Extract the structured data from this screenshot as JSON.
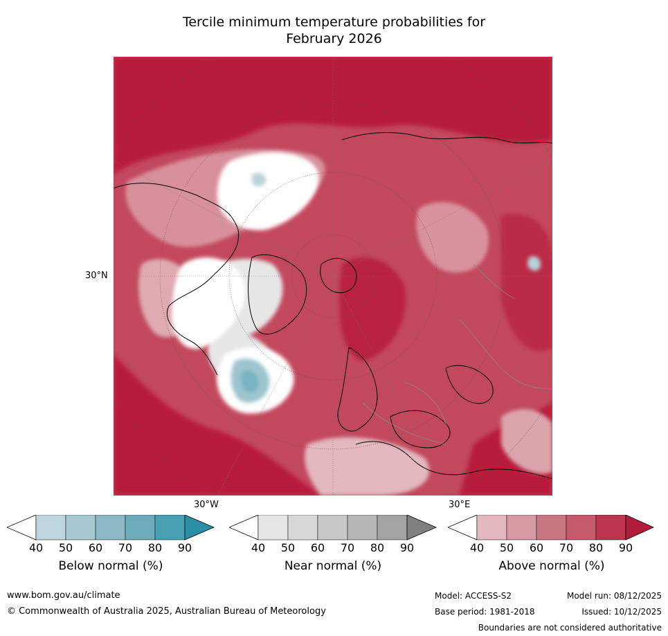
{
  "title_line1": "Tercile minimum temperature probabilities for",
  "title_line2": "February 2026",
  "map": {
    "labels": {
      "lat30n": "30°N",
      "lon30w": "30°W",
      "lon30e": "30°E"
    },
    "colors": {
      "ocean_base": "#b81c3a",
      "above_light": "#e3b8bf",
      "above_mid": "#c96c7a",
      "near_light": "#e6e6e6",
      "below_light": "#b8d3da",
      "below_mid": "#79b4c2",
      "white": "#ffffff",
      "coast": "#000000",
      "border": "#888888"
    }
  },
  "colorbars": [
    {
      "name": "below",
      "label": "Below normal (%)",
      "ticks": [
        "40",
        "50",
        "60",
        "70",
        "80",
        "90"
      ],
      "colors": [
        "#ffffff",
        "#bdd5dc",
        "#a7c8d0",
        "#8db8c5",
        "#6eabbb",
        "#48a1b3",
        "#2a8fa5"
      ]
    },
    {
      "name": "near",
      "label": "Near normal (%)",
      "ticks": [
        "40",
        "50",
        "60",
        "70",
        "80",
        "90"
      ],
      "colors": [
        "#ffffff",
        "#e6e6e6",
        "#d7d7d7",
        "#c8c8c8",
        "#b6b6b6",
        "#a3a3a3",
        "#808080"
      ]
    },
    {
      "name": "above",
      "label": "Above normal (%)",
      "ticks": [
        "40",
        "50",
        "60",
        "70",
        "80",
        "90"
      ],
      "colors": [
        "#ffffff",
        "#e3b8bf",
        "#d59aa3",
        "#c97782",
        "#c45a6a",
        "#bc3650",
        "#b01c3a"
      ]
    }
  ],
  "footer": {
    "url": "www.bom.gov.au/climate",
    "copyright": "© Commonwealth of Australia 2025, Australian Bureau of Meteorology",
    "model": "Model: ACCESS-S2",
    "model_run": "Model run: 08/12/2025",
    "base_period": "Base period: 1981-2018",
    "issued": "Issued: 10/12/2025",
    "disclaimer": "Boundaries are not considered authoritative"
  }
}
